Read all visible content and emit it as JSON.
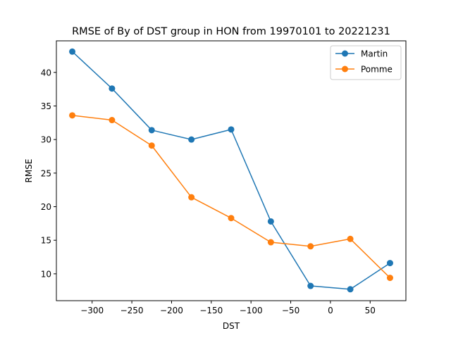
{
  "chart_data": {
    "type": "line",
    "title": "RMSE of By of DST group in HON from 19970101 to 20221231",
    "xlabel": "DST",
    "ylabel": "RMSE",
    "x": [
      -325,
      -275,
      -225,
      -175,
      -125,
      -75,
      -25,
      25,
      75
    ],
    "xlim": [
      -345,
      95
    ],
    "ylim": [
      6.0,
      44.7
    ],
    "xticks": [
      -300,
      -250,
      -200,
      -150,
      -100,
      -50,
      0,
      50
    ],
    "xtick_labels": [
      "−300",
      "−250",
      "−200",
      "−150",
      "−100",
      "−50",
      "0",
      "50"
    ],
    "yticks": [
      10,
      15,
      20,
      25,
      30,
      35,
      40
    ],
    "ytick_labels": [
      "10",
      "15",
      "20",
      "25",
      "30",
      "35",
      "40"
    ],
    "grid": false,
    "legend_position": "top-right",
    "series": [
      {
        "name": "Martin",
        "color": "#1f77b4",
        "values": [
          43.1,
          37.6,
          31.4,
          30.0,
          31.5,
          17.8,
          8.2,
          7.7,
          11.6
        ]
      },
      {
        "name": "Pomme",
        "color": "#ff7f0e",
        "values": [
          33.6,
          32.9,
          29.1,
          21.4,
          18.3,
          14.7,
          14.1,
          15.2,
          9.4
        ]
      }
    ]
  }
}
